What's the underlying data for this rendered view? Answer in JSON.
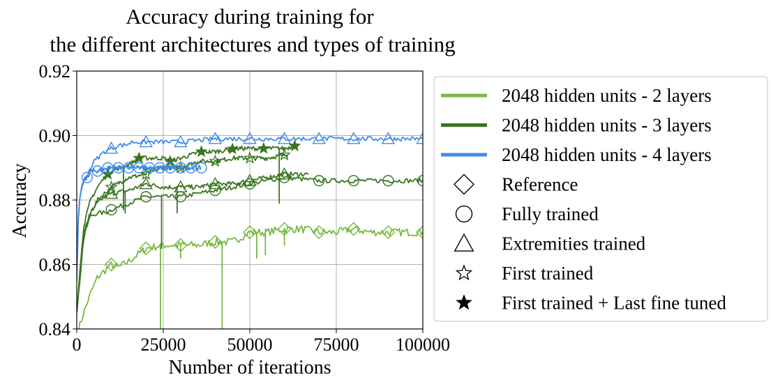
{
  "chart_data": {
    "type": "line",
    "title_lines": [
      "Accuracy during training for",
      "the different architectures and types of training"
    ],
    "xlabel": "Number of iterations",
    "ylabel": "Accuracy",
    "xlim": [
      0,
      100000
    ],
    "ylim": [
      0.84,
      0.92
    ],
    "x_ticks": [
      0,
      25000,
      50000,
      75000,
      100000
    ],
    "x_tick_labels": [
      "0",
      "25000",
      "50000",
      "75000",
      "100000"
    ],
    "y_ticks": [
      0.84,
      0.86,
      0.88,
      0.9,
      0.92
    ],
    "y_tick_labels": [
      "0.84",
      "0.86",
      "0.88",
      "0.90",
      "0.92"
    ],
    "grid": true,
    "legend_position": "outside-right",
    "legend": {
      "lines": [
        {
          "label": "2048 hidden units - 2 layers",
          "color": "#77b843"
        },
        {
          "label": "2048 hidden units - 3 layers",
          "color": "#3a7520"
        },
        {
          "label": "2048 hidden units - 4 layers",
          "color": "#3f8be8"
        }
      ],
      "markers": [
        {
          "label": "Reference",
          "marker": "diamond"
        },
        {
          "label": "Fully trained",
          "marker": "circle"
        },
        {
          "label": "Extremities trained",
          "marker": "triangle"
        },
        {
          "label": "First trained",
          "marker": "star-open"
        },
        {
          "label": "First trained + Last fine tuned",
          "marker": "star-filled"
        }
      ]
    },
    "series": [
      {
        "architecture": "2 layers",
        "training": "Reference",
        "color": "#77b843",
        "marker": "diamond",
        "x": [
          0,
          2000,
          4000,
          6000,
          8000,
          10000,
          12000,
          15000,
          20000,
          25000,
          30000,
          35000,
          40000,
          45000,
          50000,
          55000,
          60000,
          65000,
          70000,
          75000,
          80000,
          85000,
          90000,
          95000,
          100000
        ],
        "y": [
          0.838,
          0.845,
          0.851,
          0.856,
          0.858,
          0.86,
          0.859,
          0.861,
          0.865,
          0.866,
          0.866,
          0.866,
          0.867,
          0.867,
          0.87,
          0.87,
          0.871,
          0.871,
          0.87,
          0.87,
          0.871,
          0.87,
          0.87,
          0.87,
          0.87
        ],
        "spikes": [
          {
            "x": 24200,
            "y": 0.84
          },
          {
            "x": 30000,
            "y": 0.862
          },
          {
            "x": 42000,
            "y": 0.84
          },
          {
            "x": 52000,
            "y": 0.862
          },
          {
            "x": 54500,
            "y": 0.863
          },
          {
            "x": 60000,
            "y": 0.866
          }
        ],
        "marker_x": [
          10000,
          20000,
          30000,
          40000,
          50000,
          60000,
          70000,
          80000,
          90000,
          100000
        ]
      },
      {
        "architecture": "3 layers",
        "training": "Fully trained",
        "color": "#3a7520",
        "marker": "circle",
        "x": [
          0,
          1000,
          2000,
          3000,
          4000,
          6000,
          8000,
          10000,
          15000,
          20000,
          25000,
          30000,
          35000,
          40000,
          50000,
          60000,
          70000,
          80000,
          90000,
          100000
        ],
        "y": [
          0.845,
          0.86,
          0.868,
          0.873,
          0.875,
          0.876,
          0.876,
          0.877,
          0.879,
          0.881,
          0.881,
          0.881,
          0.882,
          0.883,
          0.885,
          0.887,
          0.886,
          0.886,
          0.886,
          0.886
        ],
        "spikes": [
          {
            "x": 24500,
            "y": 0.865
          }
        ],
        "marker_x": [
          10000,
          20000,
          30000,
          40000,
          50000,
          60000,
          70000,
          80000,
          90000,
          100000
        ]
      },
      {
        "architecture": "3 layers",
        "training": "Extremities trained",
        "color": "#3a7520",
        "marker": "triangle",
        "x": [
          0,
          2000,
          4000,
          6000,
          8000,
          10000,
          15000,
          20000,
          25000,
          30000,
          35000,
          40000,
          45000,
          50000,
          55000,
          60000,
          65000,
          67000
        ],
        "y": [
          0.845,
          0.868,
          0.876,
          0.879,
          0.881,
          0.882,
          0.883,
          0.885,
          0.884,
          0.884,
          0.884,
          0.885,
          0.885,
          0.886,
          0.887,
          0.888,
          0.888,
          0.888
        ],
        "spikes": [
          {
            "x": 14000,
            "y": 0.876
          },
          {
            "x": 29000,
            "y": 0.876
          }
        ],
        "marker_x": [
          10000,
          20000,
          30000,
          40000,
          50000,
          60000
        ]
      },
      {
        "architecture": "3 layers",
        "training": "First trained",
        "color": "#3a7520",
        "marker": "star-open",
        "x": [
          0,
          2000,
          4000,
          6000,
          8000,
          10000,
          15000,
          20000,
          25000,
          30000,
          35000,
          40000,
          45000,
          50000,
          55000,
          60000,
          61000
        ],
        "y": [
          0.845,
          0.87,
          0.876,
          0.88,
          0.882,
          0.884,
          0.887,
          0.888,
          0.89,
          0.89,
          0.892,
          0.892,
          0.893,
          0.893,
          0.893,
          0.894,
          0.894
        ],
        "spikes": [],
        "marker_x": [
          10000,
          20000,
          30000,
          40000,
          50000,
          60000
        ]
      },
      {
        "architecture": "3 layers",
        "training": "First trained + Last fine tuned",
        "color": "#3a7520",
        "marker": "star-filled",
        "x": [
          0,
          2000,
          4000,
          6000,
          8000,
          10000,
          15000,
          18000,
          22000,
          25000,
          27000,
          30000,
          36000,
          40000,
          46000,
          50000,
          55000,
          60000,
          64000
        ],
        "y": [
          0.845,
          0.872,
          0.88,
          0.884,
          0.887,
          0.889,
          0.891,
          0.893,
          0.893,
          0.893,
          0.892,
          0.893,
          0.895,
          0.895,
          0.896,
          0.896,
          0.896,
          0.896,
          0.897
        ],
        "spikes": [
          {
            "x": 13500,
            "y": 0.877
          },
          {
            "x": 58500,
            "y": 0.879
          }
        ],
        "marker_x": [
          9000,
          18000,
          27000,
          36000,
          45000,
          54000,
          63000
        ]
      },
      {
        "architecture": "4 layers",
        "training": "Reference",
        "color": "#3f8be8",
        "marker": "circle",
        "x": [
          0,
          500,
          1000,
          1500,
          2000,
          3000,
          4000,
          6000,
          9000,
          12000,
          15000,
          18000,
          21000,
          24000,
          27000,
          30000,
          33000,
          36000
        ],
        "y": [
          0.855,
          0.875,
          0.881,
          0.884,
          0.886,
          0.887,
          0.889,
          0.889,
          0.89,
          0.89,
          0.89,
          0.89,
          0.89,
          0.89,
          0.89,
          0.89,
          0.89,
          0.89
        ],
        "spikes": [],
        "marker_x": [
          3000,
          6000,
          9000,
          12000,
          15000,
          18000,
          21000,
          24000,
          27000,
          30000,
          33000,
          36000
        ]
      },
      {
        "architecture": "4 layers",
        "training": "Extremities trained",
        "color": "#3f8be8",
        "marker": "triangle",
        "x": [
          0,
          500,
          1000,
          2000,
          3000,
          4000,
          5000,
          6000,
          8000,
          10000,
          12000,
          14000,
          16000,
          20000,
          25000,
          30000,
          40000,
          50000,
          60000,
          70000,
          80000,
          90000,
          100000
        ],
        "y": [
          0.862,
          0.876,
          0.882,
          0.886,
          0.888,
          0.89,
          0.892,
          0.893,
          0.895,
          0.896,
          0.897,
          0.897,
          0.898,
          0.898,
          0.898,
          0.898,
          0.899,
          0.899,
          0.899,
          0.899,
          0.899,
          0.899,
          0.899
        ],
        "spikes": [],
        "marker_x": [
          10000,
          20000,
          30000,
          40000,
          50000,
          60000,
          70000,
          80000,
          90000,
          100000
        ]
      }
    ]
  }
}
